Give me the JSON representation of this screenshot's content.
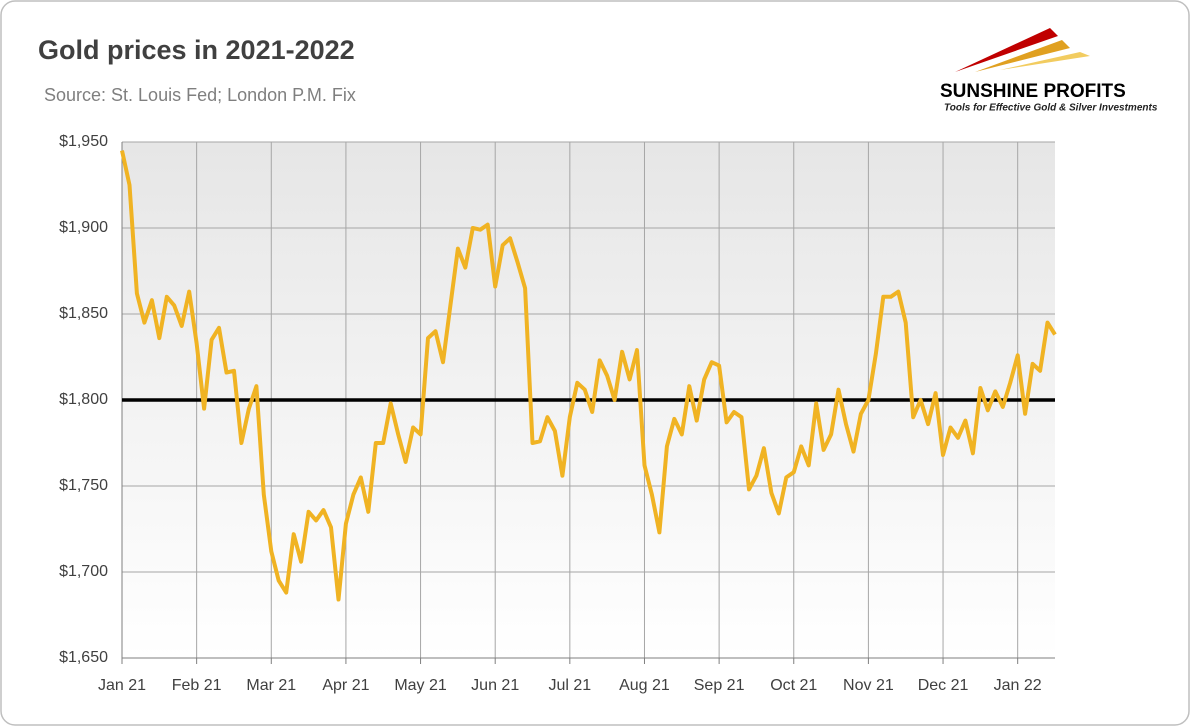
{
  "chart_data": {
    "type": "line",
    "title": "Gold prices in 2021-2022",
    "subtitle": "Source: St. Louis Fed; London P.M. Fix",
    "logo": {
      "name": "SUNSHINE PROFITS",
      "tagline": "Tools for Effective Gold & Silver Investments"
    },
    "categories": [
      "Jan 21",
      null,
      null,
      null,
      null,
      null,
      null,
      null,
      null,
      null,
      "Feb 21",
      null,
      null,
      null,
      null,
      null,
      null,
      null,
      null,
      null,
      "Mar 21",
      null,
      null,
      null,
      null,
      null,
      null,
      null,
      null,
      null,
      "Apr 21",
      null,
      null,
      null,
      null,
      null,
      null,
      null,
      null,
      null,
      "May 21",
      null,
      null,
      null,
      null,
      null,
      null,
      null,
      null,
      null,
      "Jun 21",
      null,
      null,
      null,
      null,
      null,
      null,
      null,
      null,
      null,
      "Jul 21",
      null,
      null,
      null,
      null,
      null,
      null,
      null,
      null,
      null,
      "Aug 21",
      null,
      null,
      null,
      null,
      null,
      null,
      null,
      null,
      null,
      "Sep 21",
      null,
      null,
      null,
      null,
      null,
      null,
      null,
      null,
      null,
      "Oct 21",
      null,
      null,
      null,
      null,
      null,
      null,
      null,
      null,
      null,
      "Nov 21",
      null,
      null,
      null,
      null,
      null,
      null,
      null,
      null,
      null,
      "Dec 21",
      null,
      null,
      null,
      null,
      null,
      null,
      null,
      null,
      null,
      "Jan 22",
      null,
      null,
      null,
      null,
      null
    ],
    "values": [
      1945,
      1925,
      1862,
      1845,
      1858,
      1836,
      1860,
      1855,
      1843,
      1863,
      1833,
      1795,
      1835,
      1842,
      1816,
      1817,
      1775,
      1795,
      1808,
      1745,
      1712,
      1695,
      1688,
      1722,
      1706,
      1735,
      1730,
      1736,
      1726,
      1684,
      1728,
      1745,
      1755,
      1735,
      1775,
      1775,
      1798,
      1780,
      1764,
      1784,
      1780,
      1836,
      1840,
      1822,
      1855,
      1888,
      1877,
      1900,
      1899,
      1902,
      1866,
      1890,
      1894,
      1880,
      1865,
      1775,
      1776,
      1790,
      1782,
      1756,
      1790,
      1810,
      1806,
      1793,
      1823,
      1814,
      1800,
      1828,
      1812,
      1829,
      1762,
      1745,
      1723,
      1773,
      1789,
      1780,
      1808,
      1788,
      1812,
      1822,
      1820,
      1787,
      1793,
      1790,
      1748,
      1756,
      1772,
      1746,
      1734,
      1755,
      1758,
      1773,
      1762,
      1798,
      1771,
      1780,
      1806,
      1786,
      1770,
      1792,
      1800,
      1827,
      1860,
      1860,
      1863,
      1845,
      1790,
      1800,
      1786,
      1804,
      1768,
      1784,
      1778,
      1788,
      1769,
      1807,
      1794,
      1805,
      1796,
      1810,
      1826,
      1792,
      1821,
      1817,
      1845,
      1838
    ],
    "color": "#f0b323",
    "reference_line": {
      "value": 1800,
      "color": "#000000"
    },
    "ylim": [
      1650,
      1950
    ],
    "yticks": [
      {
        "value": 1650,
        "label": "$1,650"
      },
      {
        "value": 1700,
        "label": "$1,700"
      },
      {
        "value": 1750,
        "label": "$1,750"
      },
      {
        "value": 1800,
        "label": "$1,800"
      },
      {
        "value": 1850,
        "label": "$1,850"
      },
      {
        "value": 1900,
        "label": "$1,900"
      },
      {
        "value": 1950,
        "label": "$1,950"
      }
    ],
    "grid": true
  }
}
